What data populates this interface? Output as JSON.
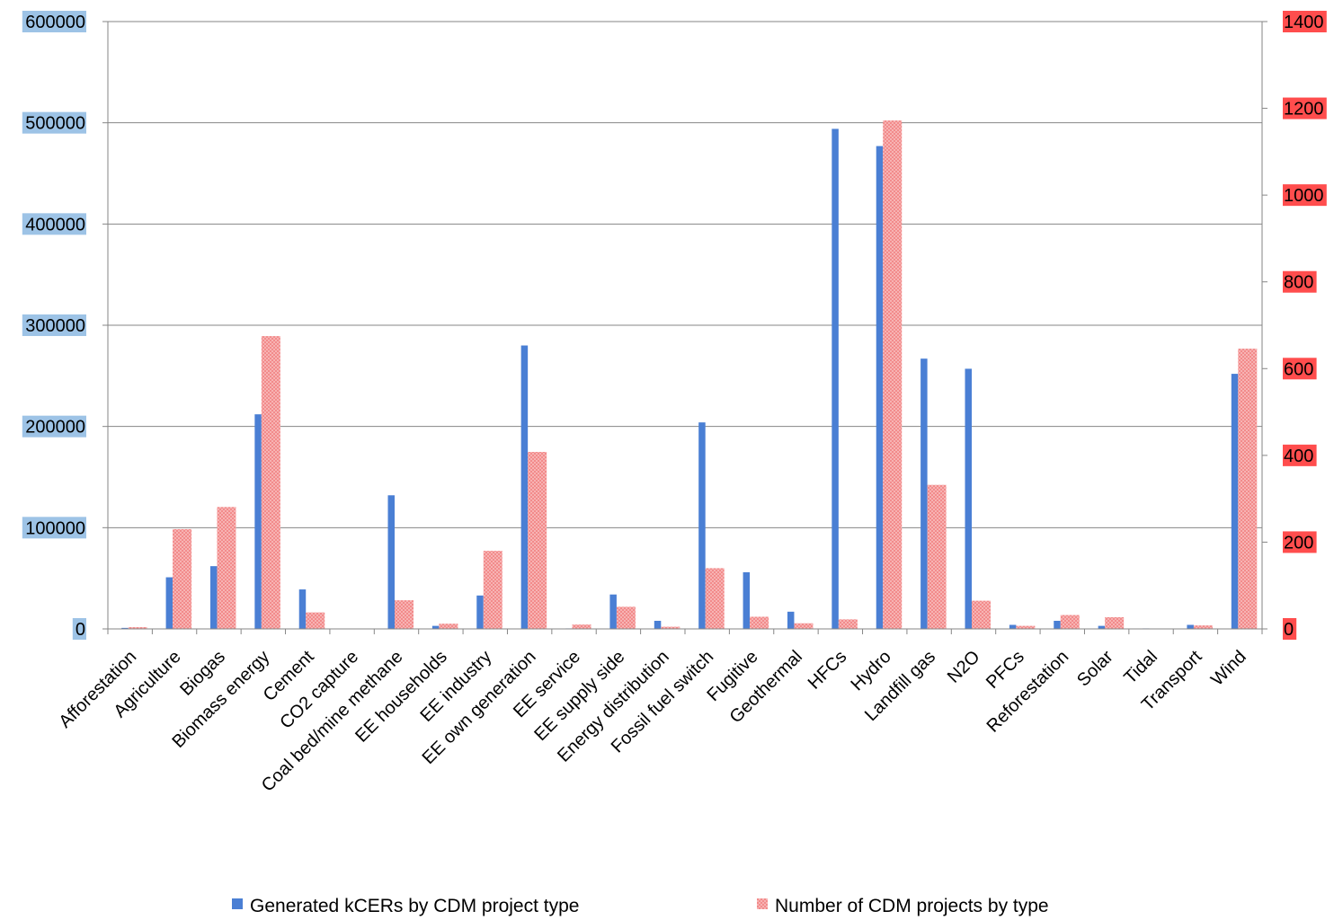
{
  "chart_data": {
    "type": "bar",
    "categories": [
      "Afforestation",
      "Agriculture",
      "Biogas",
      "Biomass energy",
      "Cement",
      "CO2 capture",
      "Coal bed/mine methane",
      "EE households",
      "EE industry",
      "EE own generation",
      "EE service",
      "EE supply side",
      "Energy distribution",
      "Fossil fuel switch",
      "Fugitive",
      "Geothermal",
      "HFCs",
      "Hydro",
      "Landfill gas",
      "N2O",
      "PFCs",
      "Reforestation",
      "Solar",
      "Tidal",
      "Transport",
      "Wind"
    ],
    "series": [
      {
        "name": "Generated kCERs by CDM project type",
        "axis": "left",
        "color": "#4a7fd4",
        "values": [
          1000,
          51000,
          62000,
          212000,
          39000,
          0,
          132000,
          3000,
          33000,
          280000,
          500,
          34000,
          8000,
          204000,
          56000,
          17000,
          494000,
          477000,
          267000,
          257000,
          4000,
          8000,
          3000,
          500,
          4000,
          252000
        ]
      },
      {
        "name": "Number of CDM projects by type",
        "axis": "right",
        "color": "#f28b8b",
        "values": [
          4,
          230,
          281,
          675,
          38,
          0,
          66,
          12,
          180,
          408,
          10,
          51,
          5,
          140,
          28,
          13,
          22,
          1172,
          332,
          65,
          7,
          32,
          27,
          1,
          8,
          646
        ]
      }
    ],
    "y_left": {
      "ticks": [
        "0",
        "100000",
        "200000",
        "300000",
        "400000",
        "500000",
        "600000"
      ],
      "min": 0,
      "max": 600000,
      "label_bg": "#9dc3e6"
    },
    "y_right": {
      "ticks": [
        "0",
        "200",
        "400",
        "600",
        "800",
        "1000",
        "1200",
        "1400"
      ],
      "min": 0,
      "max": 1400,
      "label_bg": "#ff4d4d"
    },
    "grid": true,
    "legend_position": "bottom"
  }
}
